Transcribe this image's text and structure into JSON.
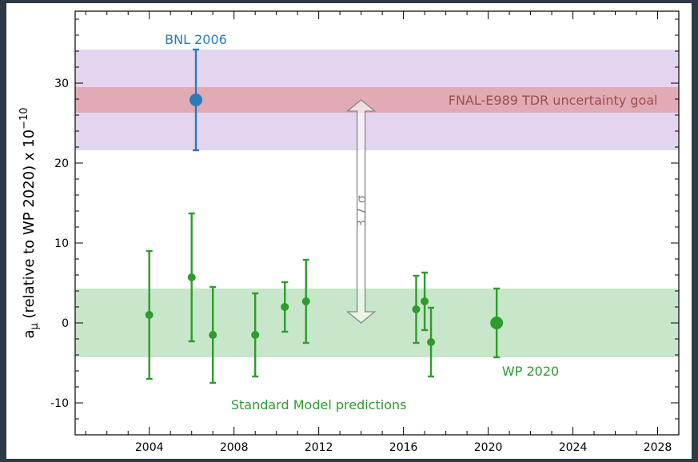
{
  "chart_data": {
    "type": "scatter",
    "title": "",
    "xlabel": "",
    "ylabel": "a",
    "ylabel_sub": "μ",
    "ylabel_rest": " (relative to WP 2020) x 10",
    "ylabel_sup": "−10",
    "xlim": [
      2000.5,
      2029
    ],
    "ylim": [
      -14,
      39
    ],
    "x_ticks": [
      2004,
      2008,
      2012,
      2016,
      2020,
      2024,
      2028
    ],
    "x_tick_labels": [
      "2004",
      "2008",
      "2012",
      "2016",
      "2020",
      "2024",
      "2028"
    ],
    "y_ticks": [
      -10,
      0,
      10,
      20,
      30
    ],
    "y_tick_labels": [
      "-10",
      "0",
      "10",
      "20",
      "30"
    ],
    "grid": false,
    "bands": [
      {
        "name": "bnl-band",
        "y_low": 21.6,
        "y_high": 34.2,
        "color": "#e3d5ef"
      },
      {
        "name": "fnal-band",
        "y_low": 26.3,
        "y_high": 29.5,
        "color": "#e2aab4"
      },
      {
        "name": "wp-band",
        "y_low": -4.3,
        "y_high": 4.3,
        "color": "#c8e6c9"
      }
    ],
    "series": [
      {
        "color": "#2d9c2d",
        "points": [
          {
            "x": 2004.0,
            "y": 1.0,
            "err_low": 8.0,
            "err_high": 8.0
          },
          {
            "x": 2006.0,
            "y": 5.7,
            "err_low": 8.0,
            "err_high": 8.0
          },
          {
            "x": 2007.0,
            "y": -1.5,
            "err_low": 6.0,
            "err_high": 6.0
          },
          {
            "x": 2009.0,
            "y": -1.5,
            "err_low": 5.2,
            "err_high": 5.2
          },
          {
            "x": 2010.4,
            "y": 2.0,
            "err_low": 3.1,
            "err_high": 3.1
          },
          {
            "x": 2011.4,
            "y": 2.7,
            "err_low": 5.2,
            "err_high": 5.2
          },
          {
            "x": 2016.6,
            "y": 1.7,
            "err_low": 4.2,
            "err_high": 4.2
          },
          {
            "x": 2017.0,
            "y": 2.7,
            "err_low": 3.6,
            "err_high": 3.6
          },
          {
            "x": 2017.3,
            "y": -2.4,
            "err_low": 4.3,
            "err_high": 4.3
          },
          {
            "x": 2020.4,
            "y": 0.0,
            "err_low": 4.3,
            "err_high": 4.3,
            "large": true
          }
        ]
      },
      {
        "color": "#2a7ab9",
        "points": [
          {
            "x": 2006.2,
            "y": 27.9,
            "err_low": 6.3,
            "err_high": 6.3,
            "large": true
          }
        ]
      }
    ],
    "arrow": {
      "x": 2014.0,
      "y_low": 0.0,
      "y_high": 27.9,
      "label": "3.7 σ",
      "color": "#888888"
    },
    "annotations": [
      {
        "name": "bnl-label",
        "text": "BNL 2006",
        "x": 2006.2,
        "y": 35.5,
        "color": "#2a7ab9",
        "anchor": "middle"
      },
      {
        "name": "fnal-label",
        "text": "FNAL-E989 TDR uncertainty goal",
        "x": 2028.0,
        "y": 27.9,
        "color": "#9a5050",
        "anchor": "end"
      },
      {
        "name": "wp-label",
        "text": "WP 2020",
        "x": 2022.0,
        "y": -6.0,
        "color": "#2d9c2d",
        "anchor": "middle"
      },
      {
        "name": "sm-label",
        "text": "Standard Model predictions",
        "x": 2012.0,
        "y": -10.2,
        "color": "#2d9c2d",
        "anchor": "middle"
      }
    ]
  }
}
